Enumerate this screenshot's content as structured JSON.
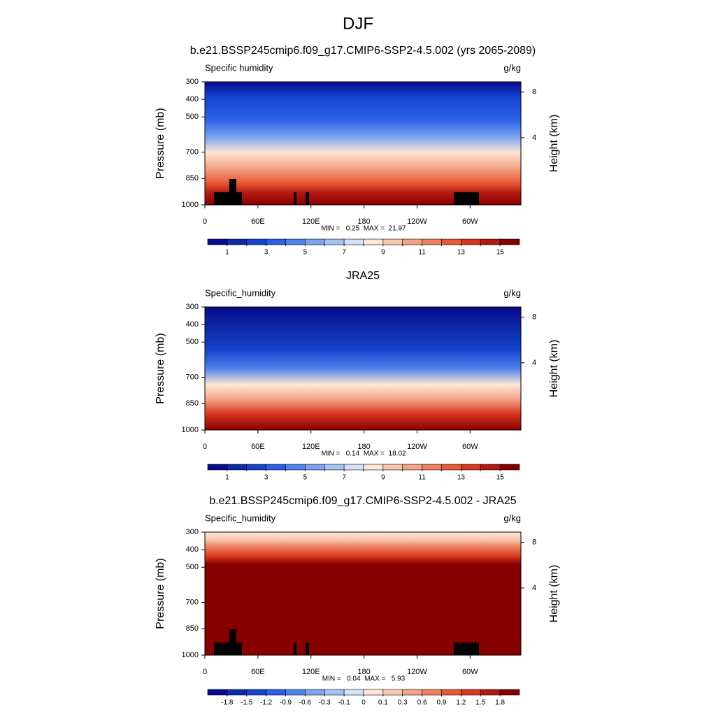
{
  "title": "DJF",
  "chart_data": [
    {
      "type": "contour",
      "title": "b.e21.BSSP245cmip6.f09_g17.CMIP6-SSP2-4.5.002 (yrs 2065-2089)",
      "left_label": "Specific humidity",
      "right_label": "g/kg",
      "ylabel": "Pressure (mb)",
      "y2label": "Height (km)",
      "stats": "MIN =   0.25  MAX =  21.97",
      "xlim": [
        0,
        357.5
      ],
      "xticks": [
        0,
        {
          "value": 60,
          "label": "60E"
        },
        {
          "value": 120,
          "label": "120E"
        },
        180,
        {
          "value": 240,
          "label": "120W"
        },
        {
          "value": 300,
          "label": "60W"
        }
      ],
      "ylim": [
        300,
        1000
      ],
      "yticks": [
        300,
        400,
        500,
        700,
        850,
        1000
      ],
      "y2lim": [
        -1.9,
        8.9
      ],
      "y2ticks": [
        4,
        8
      ],
      "colors": [
        "#0a0a8c",
        "#0b2aa8",
        "#1543cf",
        "#2a5fe8",
        "#4f83ec",
        "#7ba3ef",
        "#a6c2f4",
        "#d3e2fa",
        "#fde6d6",
        "#f8c7ad",
        "#f4a486",
        "#ef7f5f",
        "#e85a37",
        "#d8361e",
        "#b51a10",
        "#870000"
      ],
      "levels": [
        1,
        {
          "value": 2,
          "label": null
        },
        3,
        {
          "value": 4,
          "label": null
        },
        5,
        {
          "value": 6,
          "label": null
        },
        7,
        {
          "value": 8,
          "label": null
        },
        9,
        {
          "value": 10,
          "label": null
        },
        11,
        {
          "value": 12,
          "label": null
        },
        13,
        {
          "value": 14,
          "label": null
        },
        15
      ]
    },
    {
      "type": "contour",
      "title": "JRA25",
      "left_label": "Specific_humidity",
      "right_label": "g/kg",
      "ylabel": "Pressure (mb)",
      "y2label": "Height (km)",
      "stats": "MIN =   0.14  MAX =  18.02",
      "xlim": [
        0,
        357.5
      ],
      "xticks": [
        0,
        {
          "value": 60,
          "label": "60E"
        },
        {
          "value": 120,
          "label": "120E"
        },
        180,
        {
          "value": 240,
          "label": "120W"
        },
        {
          "value": 300,
          "label": "60W"
        }
      ],
      "ylim": [
        300,
        1000
      ],
      "yticks": [
        300,
        400,
        500,
        700,
        850,
        1000
      ],
      "y2lim": [
        -1.9,
        8.9
      ],
      "y2ticks": [
        4,
        8
      ],
      "colors": [
        "#0a0a8c",
        "#0b2aa8",
        "#1543cf",
        "#2a5fe8",
        "#4f83ec",
        "#7ba3ef",
        "#a6c2f4",
        "#d3e2fa",
        "#fde6d6",
        "#f8c7ad",
        "#f4a486",
        "#ef7f5f",
        "#e85a37",
        "#d8361e",
        "#b51a10",
        "#870000"
      ],
      "levels": [
        1,
        {
          "value": 2,
          "label": null
        },
        3,
        {
          "value": 4,
          "label": null
        },
        5,
        {
          "value": 6,
          "label": null
        },
        7,
        {
          "value": 8,
          "label": null
        },
        9,
        {
          "value": 10,
          "label": null
        },
        11,
        {
          "value": 12,
          "label": null
        },
        13,
        {
          "value": 14,
          "label": null
        },
        15
      ]
    },
    {
      "type": "contour",
      "title": "b.e21.BSSP245cmip6.f09_g17.CMIP6-SSP2-4.5.002 - JRA25",
      "left_label": "Specific_humidity",
      "right_label": "g/kg",
      "ylabel": "Pressure (mb)",
      "y2label": "Height (km)",
      "stats": "MIN =   0.04  MAX =   5.93",
      "xlim": [
        0,
        357.5
      ],
      "xticks": [
        0,
        {
          "value": 60,
          "label": "60E"
        },
        {
          "value": 120,
          "label": "120E"
        },
        180,
        {
          "value": 240,
          "label": "120W"
        },
        {
          "value": 300,
          "label": "60W"
        }
      ],
      "ylim": [
        300,
        1000
      ],
      "yticks": [
        300,
        400,
        500,
        700,
        850,
        1000
      ],
      "y2lim": [
        -1.9,
        8.9
      ],
      "y2ticks": [
        4,
        8
      ],
      "colors": [
        "#0a0a8c",
        "#0b2aa8",
        "#1543cf",
        "#2a5fe8",
        "#4f83ec",
        "#7ba3ef",
        "#a6c2f4",
        "#d3e2fa",
        "#fde6d6",
        "#f8c7ad",
        "#f4a486",
        "#ef7f5f",
        "#e85a37",
        "#d8361e",
        "#b51a10",
        "#870000"
      ],
      "levels": [
        -1.8,
        -1.5,
        -1.2,
        -0.9,
        -0.6,
        -0.3,
        -0.1,
        0,
        0.1,
        0.3,
        0.6,
        0.9,
        1.2,
        1.5,
        1.8
      ]
    }
  ]
}
